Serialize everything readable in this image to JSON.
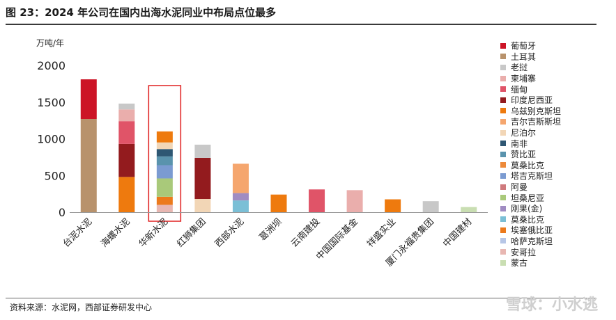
{
  "header": {
    "title": "图 23：2024 年公司在国内出海水泥同业中布局点位最多"
  },
  "footer": {
    "source": "资料来源：水泥网，西部证券研发中心",
    "watermark": "雪球：小水逃"
  },
  "chart_data": {
    "type": "bar",
    "stacked": true,
    "ylabel": "万吨/年",
    "ylim": [
      0,
      2000
    ],
    "yticks": [
      0,
      500,
      1000,
      1500,
      2000
    ],
    "grid": false,
    "legend_position": "right",
    "highlight_category": "华新水泥",
    "categories": [
      "台泥水泥",
      "海螺水泥",
      "华新水泥",
      "红狮集团",
      "西部水泥",
      "葛洲坝",
      "云南建投",
      "中国国际基金",
      "祥盛实业",
      "厦门永福贵集团",
      "中国建材"
    ],
    "series": [
      {
        "name": "蒙古",
        "color": "#c9deb2",
        "values": [
          0,
          0,
          0,
          0,
          0,
          0,
          0,
          0,
          0,
          0,
          70
        ]
      },
      {
        "name": "安哥拉",
        "color": "#e8b7b2",
        "values": [
          0,
          0,
          100,
          0,
          0,
          0,
          0,
          0,
          0,
          0,
          0
        ]
      },
      {
        "name": "哈萨克斯坦",
        "color": "#b7c6e6",
        "values": [
          0,
          0,
          0,
          0,
          0,
          0,
          0,
          0,
          0,
          0,
          0
        ]
      },
      {
        "name": "埃塞俄比亚",
        "color": "#ec7a1c",
        "values": [
          0,
          0,
          110,
          0,
          0,
          0,
          0,
          0,
          0,
          0,
          0
        ]
      },
      {
        "name": "莫桑比克",
        "color": "#7bbfd6",
        "values": [
          0,
          0,
          0,
          0,
          160,
          0,
          0,
          0,
          0,
          0,
          0
        ]
      },
      {
        "name": "刚果(金)",
        "color": "#a08cc2",
        "values": [
          0,
          0,
          0,
          0,
          100,
          0,
          0,
          0,
          0,
          0,
          0
        ]
      },
      {
        "name": "坦桑尼亚",
        "color": "#a9c97a",
        "values": [
          0,
          0,
          250,
          0,
          0,
          0,
          0,
          0,
          0,
          0,
          0
        ]
      },
      {
        "name": "阿曼",
        "color": "#cf7a7d",
        "values": [
          0,
          0,
          0,
          0,
          0,
          0,
          0,
          0,
          0,
          0,
          0
        ]
      },
      {
        "name": "塔吉克斯坦",
        "color": "#7b9bd1",
        "values": [
          0,
          0,
          180,
          0,
          0,
          0,
          0,
          0,
          0,
          0,
          0
        ]
      },
      {
        "name": "莫桑比克",
        "color": "#ed8a3a",
        "values": [
          0,
          0,
          0,
          0,
          0,
          0,
          0,
          0,
          0,
          0,
          0
        ]
      },
      {
        "name": "赞比亚",
        "color": "#5a93ad",
        "values": [
          0,
          0,
          120,
          0,
          0,
          0,
          0,
          0,
          0,
          0,
          0
        ]
      },
      {
        "name": "南非",
        "color": "#2e5773",
        "values": [
          0,
          0,
          100,
          0,
          0,
          0,
          0,
          0,
          0,
          0,
          0
        ]
      },
      {
        "name": "尼泊尔",
        "color": "#f2d6b6",
        "values": [
          0,
          0,
          90,
          180,
          0,
          0,
          0,
          0,
          0,
          0,
          0
        ]
      },
      {
        "name": "吉尔吉斯斯坦",
        "color": "#f5a66e",
        "values": [
          0,
          0,
          0,
          0,
          400,
          0,
          0,
          0,
          0,
          0,
          0
        ]
      },
      {
        "name": "乌兹别克斯坦",
        "color": "#ee7a0e",
        "values": [
          0,
          480,
          150,
          0,
          0,
          240,
          0,
          0,
          175,
          0,
          0
        ]
      },
      {
        "name": "印度尼西亚",
        "color": "#931b1e",
        "values": [
          0,
          450,
          0,
          560,
          0,
          0,
          0,
          0,
          0,
          0,
          0
        ]
      },
      {
        "name": "缅甸",
        "color": "#e05468",
        "values": [
          0,
          310,
          0,
          0,
          0,
          0,
          310,
          0,
          0,
          0,
          0
        ]
      },
      {
        "name": "柬埔寨",
        "color": "#eaaeac",
        "values": [
          0,
          160,
          0,
          0,
          0,
          0,
          0,
          300,
          0,
          0,
          0
        ]
      },
      {
        "name": "老挝",
        "color": "#c8c8c8",
        "values": [
          0,
          80,
          0,
          180,
          0,
          0,
          0,
          0,
          0,
          150,
          0
        ]
      },
      {
        "name": "土耳其",
        "color": "#b8926c",
        "values": [
          1270,
          0,
          0,
          0,
          0,
          0,
          0,
          0,
          0,
          0,
          0
        ]
      },
      {
        "name": "葡萄牙",
        "color": "#cc1426",
        "values": [
          540,
          0,
          0,
          0,
          0,
          0,
          0,
          0,
          0,
          0,
          0
        ]
      }
    ]
  },
  "legend": {
    "items": [
      {
        "name": "葡萄牙",
        "color": "#cc1426"
      },
      {
        "name": "土耳其",
        "color": "#b8926c"
      },
      {
        "name": "老挝",
        "color": "#c8c8c8"
      },
      {
        "name": "柬埔寨",
        "color": "#eaaeac"
      },
      {
        "name": "缅甸",
        "color": "#e05468"
      },
      {
        "name": "印度尼西亚",
        "color": "#931b1e"
      },
      {
        "name": "乌兹别克斯坦",
        "color": "#ee7a0e"
      },
      {
        "name": "吉尔吉斯斯坦",
        "color": "#f5a66e"
      },
      {
        "name": "尼泊尔",
        "color": "#f2d6b6"
      },
      {
        "name": "南非",
        "color": "#2e5773"
      },
      {
        "name": "赞比亚",
        "color": "#5a93ad"
      },
      {
        "name": "莫桑比克",
        "color": "#ed8a3a"
      },
      {
        "name": "塔吉克斯坦",
        "color": "#7b9bd1"
      },
      {
        "name": "阿曼",
        "color": "#cf7a7d"
      },
      {
        "name": "坦桑尼亚",
        "color": "#a9c97a"
      },
      {
        "name": "刚果(金)",
        "color": "#a08cc2"
      },
      {
        "name": "莫桑比克",
        "color": "#7bbfd6"
      },
      {
        "name": "埃塞俄比亚",
        "color": "#ec7a1c"
      },
      {
        "name": "哈萨克斯坦",
        "color": "#b7c6e6"
      },
      {
        "name": "安哥拉",
        "color": "#e8b7b2"
      },
      {
        "name": "蒙古",
        "color": "#c9deb2"
      }
    ]
  }
}
